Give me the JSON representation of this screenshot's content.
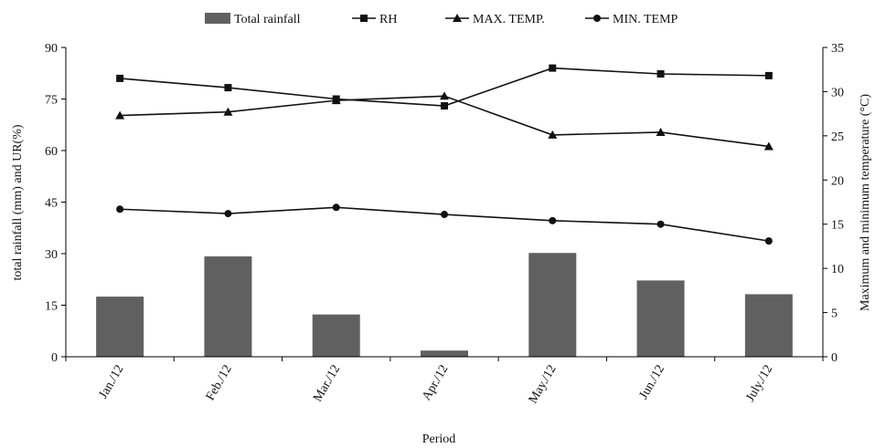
{
  "chart_data": {
    "type": "bar+line",
    "categories": [
      "Jan./12",
      "Feb./12",
      "Mar./12",
      "Apr./12",
      "May./12",
      "Jun./12",
      "July./12"
    ],
    "xlabel": "Period",
    "ylabel_left": "total rainfall (mm) and UR(%)",
    "ylabel_right": "Maximum and minimum temperature (°C)",
    "ylim_left": [
      0,
      90
    ],
    "yticks_left": [
      0,
      15,
      30,
      45,
      60,
      75,
      90
    ],
    "ylim_right": [
      0,
      35
    ],
    "yticks_right": [
      0,
      5,
      10,
      15,
      20,
      25,
      30,
      35
    ],
    "grid": false,
    "legend_position": "top",
    "series": [
      {
        "name": "Total rainfall",
        "kind": "bar",
        "axis": "left",
        "color": "#606060",
        "values": [
          17.5,
          29.2,
          12.3,
          1.8,
          30.2,
          22.2,
          18.2
        ]
      },
      {
        "name": "RH",
        "kind": "line",
        "marker": "square",
        "axis": "left",
        "color": "#111111",
        "values": [
          81,
          78.3,
          75,
          73,
          84,
          82.3,
          81.8
        ]
      },
      {
        "name": "MAX. TEMP.",
        "kind": "line",
        "marker": "triangle",
        "axis": "right",
        "color": "#111111",
        "values": [
          27.3,
          27.7,
          29,
          29.5,
          25.1,
          25.4,
          23.8
        ]
      },
      {
        "name": "MIN. TEMP",
        "kind": "line",
        "marker": "circle",
        "axis": "right",
        "color": "#111111",
        "values": [
          16.7,
          16.2,
          16.9,
          16.1,
          15.4,
          15.0,
          13.1
        ]
      }
    ]
  }
}
